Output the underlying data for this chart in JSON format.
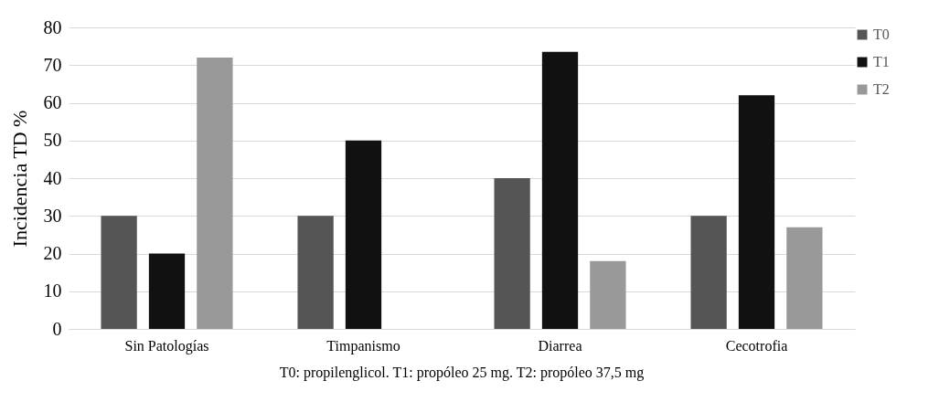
{
  "chart_data": {
    "type": "bar",
    "ylabel": "Incidencia TD %",
    "categories": [
      "Sin Patologías",
      "Timpanismo",
      "Diarrea",
      "Cecotrofia"
    ],
    "series": [
      {
        "name": "T0",
        "color": "#555555",
        "values": [
          30,
          30,
          40,
          30
        ]
      },
      {
        "name": "T1",
        "color": "#111111",
        "values": [
          20,
          50,
          73.5,
          62
        ]
      },
      {
        "name": "T2",
        "color": "#999999",
        "values": [
          72,
          0,
          18,
          27
        ]
      }
    ],
    "ylim": [
      0,
      80
    ],
    "yticks": [
      0,
      10,
      20,
      30,
      40,
      50,
      60,
      70,
      80
    ],
    "grid": "y",
    "legend": "right",
    "annotations": [
      "T0: propilenglicol. T1: propóleo 25 mg.  T2: propóleo 37,5 mg"
    ]
  }
}
